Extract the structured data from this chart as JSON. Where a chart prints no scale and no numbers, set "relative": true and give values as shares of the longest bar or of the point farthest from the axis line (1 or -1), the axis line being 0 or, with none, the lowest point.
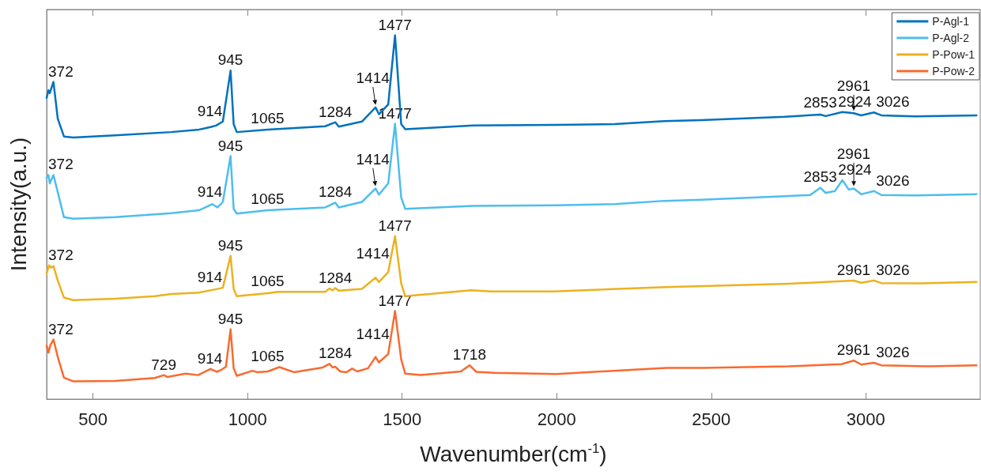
{
  "chart_data": {
    "type": "line",
    "relative": true,
    "xlabel": "Wavenumber(cm$^{-1}$)",
    "ylabel": "Intensity(a.u.)",
    "xlim": [
      350,
      3370
    ],
    "xticks": [
      500,
      1000,
      1500,
      2000,
      2500,
      3000
    ],
    "grid": false,
    "legend": "top right",
    "marker": "none",
    "line_style": "solid",
    "series": [
      {
        "name": "P-Agl-1",
        "color": "#0072bd",
        "x": [
          350,
          356,
          360,
          372,
          386,
          406,
          436,
          571,
          753,
          843,
          880,
          898,
          920,
          945,
          955,
          965,
          1065,
          1251,
          1284,
          1295,
          1370,
          1414,
          1425,
          1455,
          1477,
          1497,
          1510,
          1730,
          2000,
          2188,
          2348,
          2467,
          2738,
          2853,
          2870,
          2924,
          2961,
          2985,
          3026,
          3050,
          3160,
          3358
        ],
        "values": [
          0.828,
          0.849,
          0.841,
          0.872,
          0.771,
          0.722,
          0.719,
          0.725,
          0.734,
          0.741,
          0.748,
          0.752,
          0.763,
          0.903,
          0.756,
          0.734,
          0.741,
          0.75,
          0.761,
          0.749,
          0.763,
          0.802,
          0.783,
          0.81,
          1,
          0.756,
          0.742,
          0.752,
          0.754,
          0.756,
          0.764,
          0.767,
          0.776,
          0.782,
          0.778,
          0.789,
          0.786,
          0.78,
          0.788,
          0.78,
          0.777,
          0.78
        ]
      },
      {
        "name": "P-Agl-2",
        "color": "#4dbeee",
        "x": [
          350,
          356,
          360,
          372,
          386,
          406,
          436,
          571,
          753,
          843,
          885,
          903,
          920,
          945,
          955,
          965,
          1065,
          1251,
          1284,
          1295,
          1370,
          1414,
          1425,
          1455,
          1477,
          1497,
          1510,
          1730,
          2000,
          2188,
          2348,
          2467,
          2738,
          2820,
          2853,
          2870,
          2900,
          2924,
          2945,
          2961,
          2985,
          3026,
          3050,
          3160,
          3358
        ],
        "values": [
          0.608,
          0.616,
          0.593,
          0.616,
          0.569,
          0.5,
          0.496,
          0.5,
          0.511,
          0.519,
          0.536,
          0.527,
          0.542,
          0.668,
          0.523,
          0.51,
          0.519,
          0.527,
          0.54,
          0.527,
          0.542,
          0.579,
          0.562,
          0.593,
          0.757,
          0.554,
          0.523,
          0.531,
          0.533,
          0.536,
          0.545,
          0.548,
          0.558,
          0.561,
          0.581,
          0.567,
          0.572,
          0.602,
          0.576,
          0.579,
          0.563,
          0.572,
          0.561,
          0.56,
          0.563
        ]
      },
      {
        "name": "P-Pow-1",
        "color": "#edb120",
        "x": [
          350,
          358,
          365,
          372,
          386,
          406,
          436,
          571,
          700,
          753,
          843,
          880,
          920,
          945,
          955,
          965,
          1065,
          1100,
          1251,
          1265,
          1275,
          1284,
          1295,
          1370,
          1414,
          1425,
          1455,
          1477,
          1497,
          1510,
          1723,
          1787,
          1990,
          2354,
          2750,
          2921,
          2961,
          2985,
          3026,
          3050,
          3179,
          3358
        ],
        "values": [
          0.345,
          0.368,
          0.361,
          0.366,
          0.326,
          0.279,
          0.272,
          0.276,
          0.283,
          0.289,
          0.293,
          0.299,
          0.306,
          0.394,
          0.303,
          0.283,
          0.291,
          0.295,
          0.295,
          0.304,
          0.299,
          0.305,
          0.298,
          0.303,
          0.334,
          0.322,
          0.349,
          0.448,
          0.318,
          0.283,
          0.299,
          0.296,
          0.296,
          0.308,
          0.317,
          0.324,
          0.326,
          0.32,
          0.326,
          0.319,
          0.318,
          0.322
        ]
      },
      {
        "name": "P-Pow-2",
        "color": "#f96a2f",
        "x": [
          350,
          356,
          362,
          372,
          386,
          406,
          436,
          571,
          700,
          729,
          740,
          800,
          840,
          880,
          900,
          914,
          930,
          945,
          955,
          965,
          1016,
          1030,
          1065,
          1103,
          1150,
          1243,
          1265,
          1275,
          1284,
          1300,
          1320,
          1338,
          1355,
          1390,
          1414,
          1425,
          1455,
          1477,
          1497,
          1510,
          1560,
          1690,
          1718,
          1740,
          1800,
          2000,
          2354,
          2472,
          2750,
          2921,
          2961,
          2985,
          3026,
          3050,
          3200,
          3358
        ],
        "values": [
          0.148,
          0.128,
          0.148,
          0.164,
          0.116,
          0.059,
          0.049,
          0.05,
          0.058,
          0.066,
          0.061,
          0.07,
          0.066,
          0.083,
          0.075,
          0.08,
          0.089,
          0.192,
          0.085,
          0.064,
          0.078,
          0.074,
          0.076,
          0.088,
          0.074,
          0.087,
          0.097,
          0.087,
          0.089,
          0.076,
          0.074,
          0.084,
          0.076,
          0.085,
          0.116,
          0.101,
          0.124,
          0.242,
          0.109,
          0.07,
          0.066,
          0.076,
          0.093,
          0.075,
          0.072,
          0.069,
          0.086,
          0.086,
          0.09,
          0.096,
          0.106,
          0.095,
          0.1,
          0.093,
          0.09,
          0.093
        ]
      }
    ],
    "annotations": [
      {
        "text": "372",
        "x": 372,
        "y": 0.872
      },
      {
        "text": "914",
        "x": 914,
        "y": 0.76
      },
      {
        "text": "945",
        "x": 945,
        "y": 0.903
      },
      {
        "text": "1065",
        "x": 1065,
        "y": 0.741
      },
      {
        "text": "1284",
        "x": 1284,
        "y": 0.761
      },
      {
        "text": "1414",
        "x": 1414,
        "y": 0.802
      },
      {
        "text": "1477",
        "x": 1477,
        "y": 1
      },
      {
        "text": "2853",
        "x": 2853,
        "y": 0.782
      },
      {
        "text": "2924",
        "x": 2924,
        "y": 0.789
      },
      {
        "text": "2961",
        "x": 2961,
        "y": 0.786
      },
      {
        "text": "3026",
        "x": 3026,
        "y": 0.788
      },
      {
        "text": "372",
        "x": 372,
        "y": 0.616
      },
      {
        "text": "914",
        "x": 914,
        "y": 0.54
      },
      {
        "text": "945",
        "x": 945,
        "y": 0.668
      },
      {
        "text": "1065",
        "x": 1065,
        "y": 0.519
      },
      {
        "text": "1284",
        "x": 1284,
        "y": 0.54
      },
      {
        "text": "1414",
        "x": 1414,
        "y": 0.579
      },
      {
        "text": "1477",
        "x": 1477,
        "y": 0.757
      },
      {
        "text": "2853",
        "x": 2853,
        "y": 0.581
      },
      {
        "text": "2924",
        "x": 2924,
        "y": 0.602
      },
      {
        "text": "2961",
        "x": 2961,
        "y": 0.579
      },
      {
        "text": "3026",
        "x": 3026,
        "y": 0.572
      },
      {
        "text": "372",
        "x": 372,
        "y": 0.366
      },
      {
        "text": "914",
        "x": 914,
        "y": 0.305
      },
      {
        "text": "945",
        "x": 945,
        "y": 0.394
      },
      {
        "text": "1065",
        "x": 1065,
        "y": 0.291
      },
      {
        "text": "1284",
        "x": 1284,
        "y": 0.305
      },
      {
        "text": "1414",
        "x": 1414,
        "y": 0.334
      },
      {
        "text": "1477",
        "x": 1477,
        "y": 0.448
      },
      {
        "text": "2961",
        "x": 2961,
        "y": 0.326
      },
      {
        "text": "3026",
        "x": 3026,
        "y": 0.326
      },
      {
        "text": "372",
        "x": 372,
        "y": 0.164
      },
      {
        "text": "729",
        "x": 729,
        "y": 0.066
      },
      {
        "text": "914",
        "x": 914,
        "y": 0.08
      },
      {
        "text": "945",
        "x": 945,
        "y": 0.192
      },
      {
        "text": "1065",
        "x": 1065,
        "y": 0.076
      },
      {
        "text": "1284",
        "x": 1284,
        "y": 0.089
      },
      {
        "text": "1414",
        "x": 1414,
        "y": 0.116
      },
      {
        "text": "1477",
        "x": 1477,
        "y": 0.242
      },
      {
        "text": "1718",
        "x": 1718,
        "y": 0.093
      },
      {
        "text": "2961",
        "x": 2961,
        "y": 0.106
      },
      {
        "text": "3026",
        "x": 3026,
        "y": 0.1
      }
    ]
  }
}
